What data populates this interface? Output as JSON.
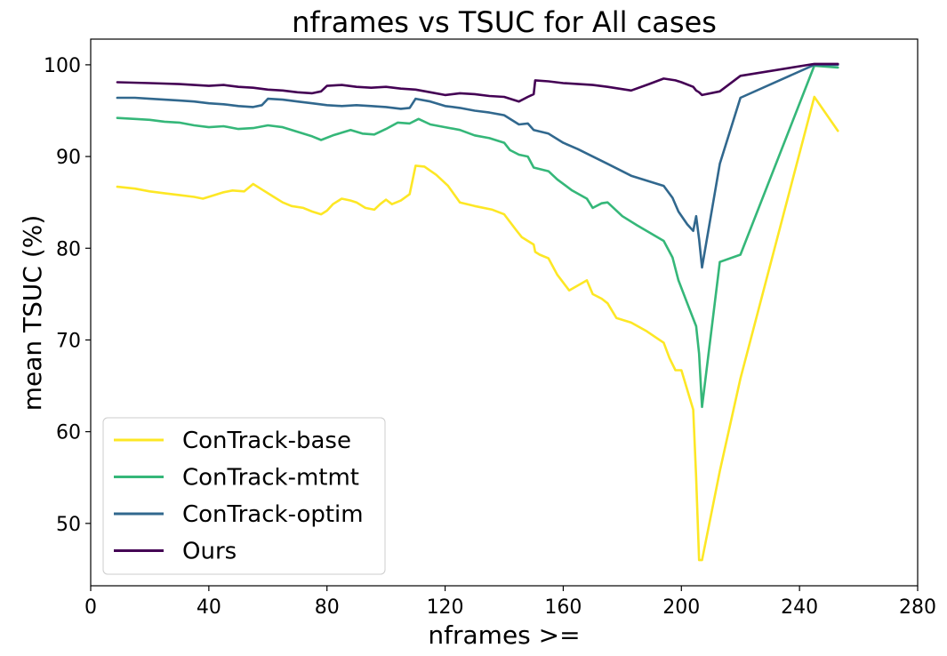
{
  "chart_data": {
    "type": "line",
    "title": "nframes vs TSUC for All cases",
    "xlabel": "nframes >=",
    "ylabel": "mean TSUC (%)",
    "xlim": [
      0,
      280
    ],
    "ylim": [
      43.2,
      102.8
    ],
    "xticks": [
      0,
      40,
      80,
      120,
      160,
      200,
      240,
      280
    ],
    "yticks": [
      50,
      60,
      70,
      80,
      90,
      100
    ],
    "grid": false,
    "legend_position": "lower-left",
    "series": [
      {
        "name": "ConTrack-base",
        "color": "#fde725",
        "x": [
          9,
          15,
          20,
          25,
          30,
          35,
          38,
          42,
          45,
          48,
          52,
          55,
          58,
          62,
          65,
          68,
          72,
          75,
          78,
          80,
          82,
          85,
          88,
          90,
          93,
          96,
          98,
          100,
          102,
          105,
          108,
          110,
          113,
          117,
          121,
          125,
          130,
          136,
          140,
          144,
          146,
          150,
          150.5,
          152,
          155,
          158,
          162,
          168,
          170,
          173,
          175,
          178,
          183,
          188,
          194,
          196,
          198,
          200,
          204,
          205,
          206,
          207,
          213,
          220,
          245,
          253
        ],
        "y": [
          86.7,
          86.5,
          86.2,
          86.0,
          85.8,
          85.6,
          85.4,
          85.8,
          86.1,
          86.3,
          86.2,
          87.0,
          86.4,
          85.6,
          85.0,
          84.6,
          84.4,
          84.0,
          83.7,
          84.1,
          84.8,
          85.4,
          85.2,
          85.0,
          84.4,
          84.2,
          84.8,
          85.3,
          84.8,
          85.2,
          85.9,
          89.0,
          88.9,
          88.0,
          86.8,
          85.0,
          84.6,
          84.2,
          83.7,
          82.0,
          81.2,
          80.4,
          79.6,
          79.3,
          78.9,
          77.1,
          75.4,
          76.5,
          75.0,
          74.5,
          74.0,
          72.4,
          71.9,
          71.0,
          69.7,
          68.0,
          66.7,
          66.7,
          62.4,
          55.0,
          46.0,
          46.0,
          55.7,
          65.8,
          96.5,
          92.8
        ]
      },
      {
        "name": "ConTrack-mtmt",
        "color": "#35b779",
        "x": [
          9,
          15,
          20,
          25,
          30,
          35,
          40,
          45,
          50,
          55,
          60,
          65,
          70,
          75,
          78,
          82,
          85,
          88,
          92,
          96,
          100,
          104,
          108,
          111,
          115,
          120,
          125,
          130,
          135,
          140,
          142,
          145,
          148,
          150,
          155,
          158,
          163,
          168,
          170,
          173,
          175,
          180,
          185,
          194,
          197,
          199,
          202,
          205,
          206,
          207,
          213,
          220,
          245,
          253
        ],
        "y": [
          94.2,
          94.1,
          94.0,
          93.8,
          93.7,
          93.4,
          93.2,
          93.3,
          93.0,
          93.1,
          93.4,
          93.2,
          92.7,
          92.2,
          91.8,
          92.3,
          92.6,
          92.9,
          92.5,
          92.4,
          93.0,
          93.7,
          93.6,
          94.1,
          93.5,
          93.2,
          92.9,
          92.3,
          92.0,
          91.5,
          90.7,
          90.2,
          90.0,
          88.8,
          88.4,
          87.5,
          86.3,
          85.4,
          84.4,
          84.9,
          85.0,
          83.5,
          82.5,
          80.8,
          79.0,
          76.5,
          74.0,
          71.5,
          68.5,
          62.7,
          78.5,
          79.3,
          99.9,
          99.7
        ]
      },
      {
        "name": "ConTrack-optim",
        "color": "#31688e",
        "x": [
          9,
          15,
          20,
          25,
          30,
          35,
          40,
          45,
          50,
          55,
          58,
          60,
          65,
          70,
          75,
          80,
          85,
          90,
          95,
          100,
          105,
          108,
          110,
          115,
          120,
          125,
          130,
          135,
          140,
          145,
          148,
          150,
          155,
          160,
          165,
          170,
          175,
          183,
          194,
          197,
          199,
          202,
          204,
          205,
          206,
          207,
          213,
          220,
          245,
          253
        ],
        "y": [
          96.4,
          96.4,
          96.3,
          96.2,
          96.1,
          96.0,
          95.8,
          95.7,
          95.5,
          95.4,
          95.6,
          96.3,
          96.2,
          96.0,
          95.8,
          95.6,
          95.5,
          95.6,
          95.5,
          95.4,
          95.2,
          95.3,
          96.3,
          96.0,
          95.5,
          95.3,
          95.0,
          94.8,
          94.5,
          93.5,
          93.6,
          92.9,
          92.5,
          91.5,
          90.8,
          90.0,
          89.2,
          87.9,
          86.8,
          85.5,
          84.0,
          82.6,
          81.9,
          83.5,
          81.0,
          77.9,
          89.2,
          96.4,
          100.0,
          100.0
        ]
      },
      {
        "name": "Ours",
        "color": "#440154",
        "x": [
          9,
          20,
          30,
          40,
          45,
          50,
          55,
          60,
          65,
          70,
          75,
          78,
          80,
          85,
          90,
          95,
          100,
          105,
          110,
          115,
          120,
          125,
          130,
          135,
          140,
          145,
          148,
          150,
          150.5,
          155,
          160,
          170,
          175,
          183,
          189,
          194,
          198,
          200,
          204,
          205,
          206,
          207,
          213,
          220,
          245,
          253
        ],
        "y": [
          98.1,
          98.0,
          97.9,
          97.7,
          97.8,
          97.6,
          97.5,
          97.3,
          97.2,
          97.0,
          96.9,
          97.1,
          97.7,
          97.8,
          97.6,
          97.5,
          97.6,
          97.4,
          97.3,
          97.0,
          96.7,
          96.9,
          96.8,
          96.6,
          96.5,
          96.0,
          96.5,
          96.8,
          98.3,
          98.2,
          98.0,
          97.8,
          97.6,
          97.2,
          97.9,
          98.5,
          98.3,
          98.1,
          97.6,
          97.2,
          97.0,
          96.7,
          97.1,
          98.8,
          100.1,
          100.1
        ]
      }
    ]
  }
}
